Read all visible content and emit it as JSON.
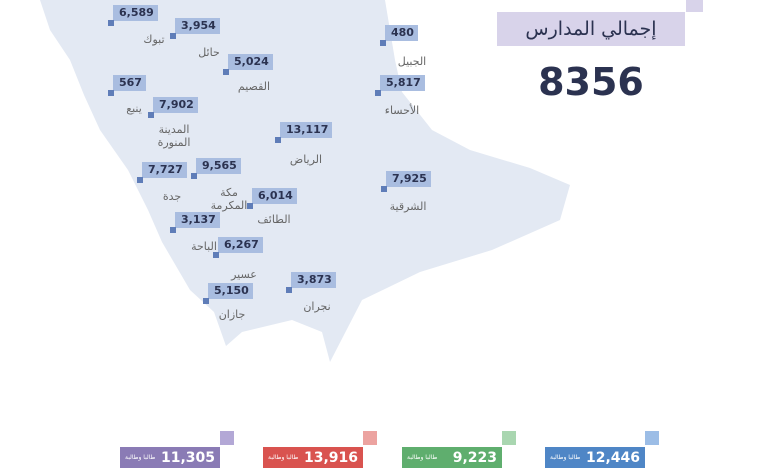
{
  "title": "إجمالي المدارس",
  "total": "8356",
  "regions": [
    {
      "value": "6,589",
      "name": "تبوك"
    },
    {
      "value": "3,954",
      "name": "حائل"
    },
    {
      "value": "5,024",
      "name": "القصيم"
    },
    {
      "value": "480",
      "name": "الجبيل"
    },
    {
      "value": "5,817",
      "name": "الأحساء"
    },
    {
      "value": "567",
      "name": "ينبع"
    },
    {
      "value": "7,902",
      "name": "المدينة المنورة"
    },
    {
      "value": "13,117",
      "name": "الرياض"
    },
    {
      "value": "7,727",
      "name": "جدة"
    },
    {
      "value": "9,565",
      "name": "مكة المكرمة"
    },
    {
      "value": "7,925",
      "name": "الشرقية"
    },
    {
      "value": "6,014",
      "name": "الطائف"
    },
    {
      "value": "3,137",
      "name": "الباحة"
    },
    {
      "value": "6,267",
      "name": "عسير"
    },
    {
      "value": "3,873",
      "name": "نجران"
    },
    {
      "value": "5,150",
      "name": "جازان"
    }
  ],
  "stats": [
    {
      "value": "11,305",
      "label": "طالبا وطالبة"
    },
    {
      "value": "13,916",
      "label": "طالبا وطالبة"
    },
    {
      "value": "9,223",
      "label": "طالبا وطالبة"
    },
    {
      "value": "12,446",
      "label": "طالبا وطالبة"
    }
  ]
}
